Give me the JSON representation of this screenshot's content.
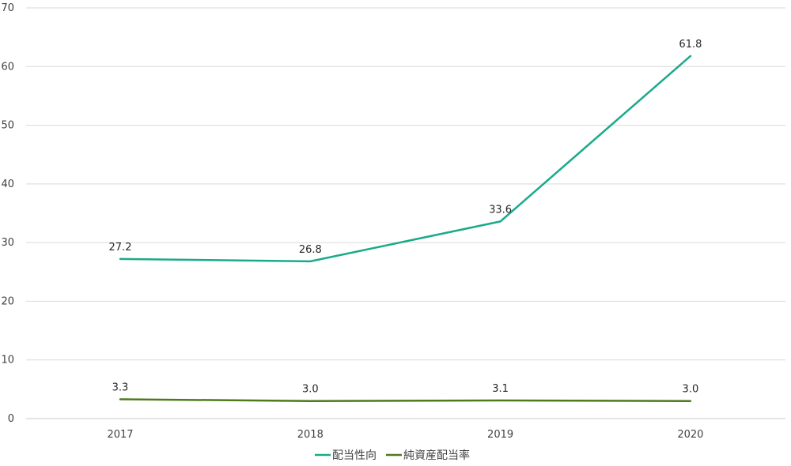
{
  "chart_data": {
    "type": "line",
    "categories": [
      "2017",
      "2018",
      "2019",
      "2020"
    ],
    "series": [
      {
        "name": "配当性向",
        "values": [
          27.2,
          26.8,
          33.6,
          61.8
        ],
        "color": "#1aaa8a",
        "labels": [
          "27.2",
          "26.8",
          "33.6",
          "61.8"
        ]
      },
      {
        "name": "純資産配当率",
        "values": [
          3.3,
          3.0,
          3.1,
          3.0
        ],
        "color": "#4d7a1a",
        "labels": [
          "3.3",
          "3.0",
          "3.1",
          "3.0"
        ]
      }
    ],
    "ylim": [
      0,
      70
    ],
    "yticks": [
      0,
      10,
      20,
      30,
      40,
      50,
      60,
      70
    ],
    "grid": true,
    "legend": "bottom-center",
    "title": "",
    "xlabel": "",
    "ylabel": ""
  }
}
